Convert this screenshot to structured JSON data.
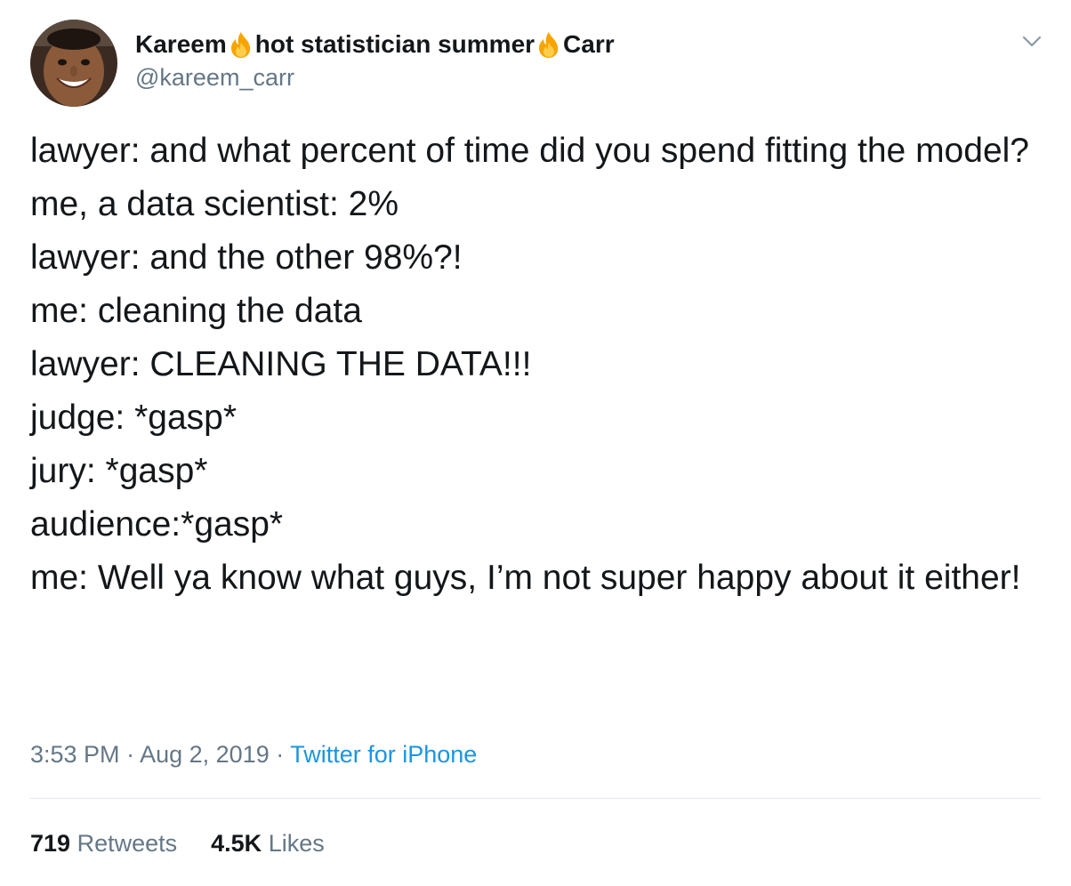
{
  "author": {
    "name_parts": [
      "Kareem",
      "hot statistician summer",
      "Carr"
    ],
    "handle": "@kareem_carr"
  },
  "header": {
    "caret_icon": "chevron-down-icon",
    "name_icon": "fire-emoji-icon"
  },
  "tweet": {
    "lines": [
      "lawyer: and what percent of time did you spend fitting the model?",
      "me, a data scientist: 2%",
      "lawyer: and the other 98%?!",
      "me: cleaning the data",
      "lawyer: CLEANING THE DATA!!!",
      "judge: *gasp*",
      "jury: *gasp*",
      "audience:*gasp*",
      "me: Well ya know what guys, I’m not super happy about it either!"
    ]
  },
  "meta": {
    "time": "3:53 PM",
    "separator": " · ",
    "date": "Aug 2, 2019",
    "source": "Twitter for iPhone"
  },
  "stats": {
    "retweets_count": "719",
    "retweets_label": "Retweets",
    "likes_count": "4.5K",
    "likes_label": "Likes"
  },
  "colors": {
    "text": "#14171a",
    "secondary": "#657786",
    "link": "#1b95e0",
    "divider": "#e1e8ed"
  }
}
